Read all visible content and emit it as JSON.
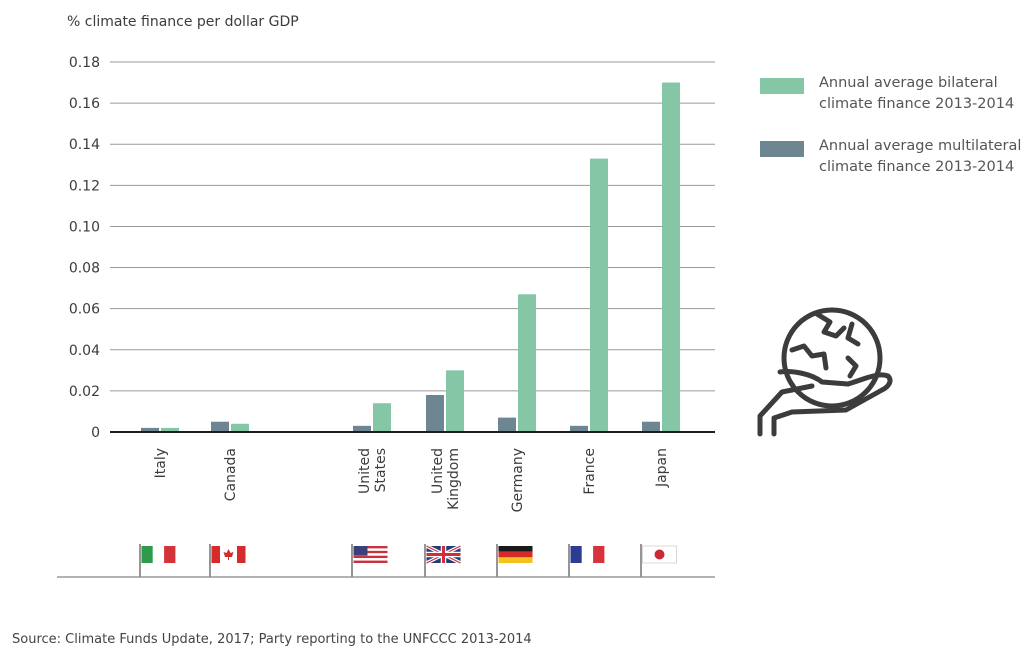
{
  "chart_data": {
    "type": "bar",
    "ylabel": "% climate finance per dollar GDP",
    "ylim": [
      0,
      0.18
    ],
    "yticks": [
      "0",
      "0.02",
      "0.04",
      "0.06",
      "0.08",
      "0.10",
      "0.12",
      "0.14",
      "0.16",
      "0.18"
    ],
    "grid": true,
    "legend_position": "top-right",
    "categories": [
      "Italy",
      "Canada",
      "United States",
      "United Kingdom",
      "Germany",
      "France",
      "Japan"
    ],
    "series": [
      {
        "name": "Annual average bilateral climate finance 2013-2014",
        "color": "#85c6a6",
        "values": [
          0.002,
          0.004,
          0.014,
          0.03,
          0.067,
          0.133,
          0.17
        ]
      },
      {
        "name": "Annual average multilateral climate finance 2013-2014",
        "color": "#6d8692",
        "values": [
          0.002,
          0.005,
          0.003,
          0.018,
          0.007,
          0.003,
          0.005
        ]
      }
    ],
    "flags": [
      "italy-flag",
      "canada-flag",
      "usa-flag",
      "uk-flag",
      "germany-flag",
      "france-flag",
      "japan-flag"
    ]
  },
  "legend": {
    "bilateral": "Annual average bilateral climate finance 2013-2014",
    "multilateral": "Annual average multilateral climate finance 2013-2014"
  },
  "icon": "globe-in-hand-icon",
  "source": "Source: Climate Funds Update, 2017; Party reporting to the UNFCCC 2013-2014"
}
